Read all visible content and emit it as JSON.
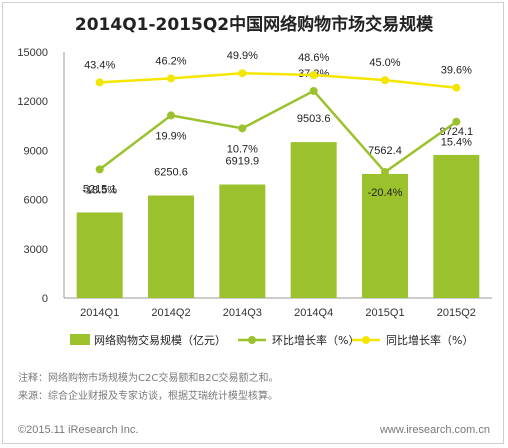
{
  "title": "2014Q1-2015Q2中国网络购物市场交易规模",
  "chart_data": {
    "type": "bar",
    "categories": [
      "2014Q1",
      "2014Q2",
      "2014Q3",
      "2014Q4",
      "2015Q1",
      "2015Q2"
    ],
    "ylim": [
      0,
      15000
    ],
    "y_ticks": [
      "0",
      "3000",
      "6000",
      "9000",
      "12000",
      "15000"
    ],
    "grid": false,
    "legend_position": "bottom",
    "series": [
      {
        "name": "网络购物交易规模（亿元）",
        "type": "bar",
        "color": "#9bc22c",
        "values": [
          5215.1,
          6250.6,
          6919.9,
          9503.6,
          7562.4,
          8724.1
        ],
        "labels": [
          "5215.1",
          "6250.6",
          "6919.9",
          "9503.6",
          "7562.4",
          "8724.1"
        ]
      },
      {
        "name": "环比增长率（%）",
        "type": "line",
        "color": "#9bc22c",
        "values": [
          -18.5,
          19.9,
          10.7,
          37.3,
          -20.4,
          15.4
        ],
        "labels": [
          "-18.5%",
          "19.9%",
          "10.7%",
          "37.3%",
          "-20.4%",
          "15.4%"
        ]
      },
      {
        "name": "同比增长率（%）",
        "type": "line",
        "color": "#f5e600",
        "values": [
          43.4,
          46.2,
          49.9,
          48.6,
          45.0,
          39.6
        ],
        "labels": [
          "43.4%",
          "46.2%",
          "49.9%",
          "48.6%",
          "45.0%",
          "39.6%"
        ]
      }
    ]
  },
  "notes": {
    "note": "注释：网络购物市场规模为C2C交易额和B2C交易额之和。",
    "source": "来源：综合企业财报及专家访谈，根据艾瑞统计模型核算。"
  },
  "footer": {
    "left": "©2015.11 iResearch Inc.",
    "right": "www.iresearch.com.cn"
  }
}
